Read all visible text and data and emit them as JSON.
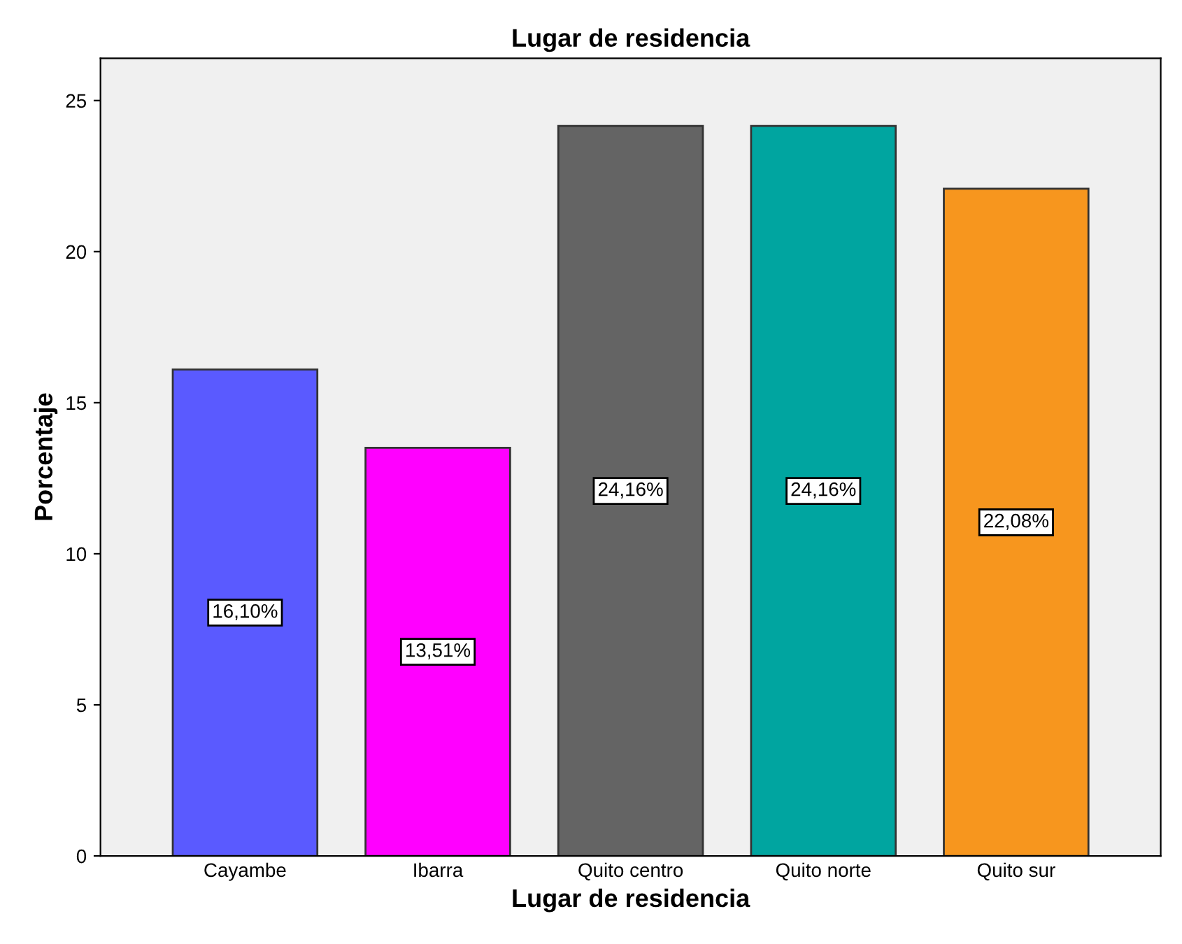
{
  "chart_data": {
    "type": "bar",
    "title": "Lugar de residencia",
    "xlabel": "Lugar de residencia",
    "ylabel": "Porcentaje",
    "categories": [
      "Cayambe",
      "Ibarra",
      "Quito centro",
      "Quito norte",
      "Quito sur"
    ],
    "values": [
      16.1,
      13.51,
      24.16,
      24.16,
      22.08
    ],
    "colors": [
      "#5a5aff",
      "#ff00ff",
      "#646464",
      "#00a5a0",
      "#f7961e"
    ],
    "value_labels": [
      "16,10%",
      "13,51%",
      "24,16%",
      "24,16%",
      "22,08%"
    ],
    "ylim": [
      0,
      26.4
    ],
    "yticks": [
      0,
      5,
      10,
      15,
      20,
      25
    ],
    "grid": false
  }
}
